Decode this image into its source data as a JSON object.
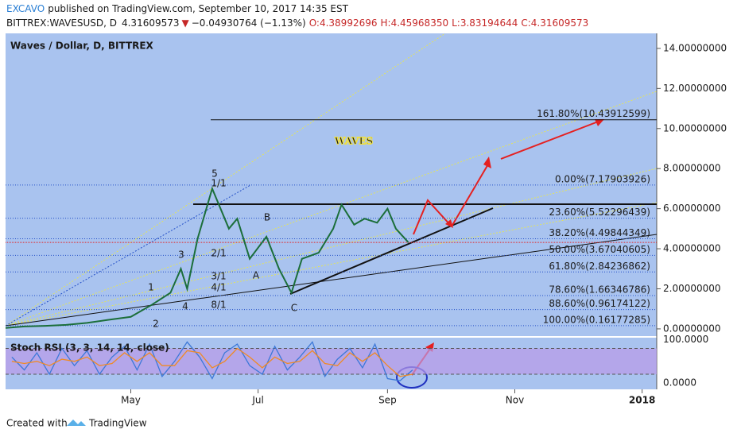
{
  "header": {
    "author": "EXCAVO",
    "published": "published on TradingView.com, September 10, 2017 14:35 EST",
    "symbol": "BITTREX:WAVESUSD, D",
    "price": "4.31609573",
    "arrow": "▼",
    "change": "−0.04930764 (−1.13%)",
    "open": "O:4.38992696",
    "high": "H:4.45968350",
    "low": "L:3.83194644",
    "close": "C:4.31609573"
  },
  "chart_data": [
    {
      "type": "line",
      "title": "Waves / Dollar, D, BITTREX",
      "color": "#1b6e3a",
      "x": [
        1,
        10,
        20,
        30,
        40,
        50,
        61,
        71,
        80,
        85,
        88,
        93,
        100,
        108,
        112,
        118,
        126,
        132,
        138,
        143,
        151,
        158,
        162,
        168,
        173,
        179,
        184,
        188,
        194
      ],
      "values": [
        0.05,
        0.12,
        0.15,
        0.2,
        0.3,
        0.45,
        0.6,
        1.2,
        1.8,
        3.0,
        2.0,
        4.5,
        7.0,
        5.0,
        5.5,
        3.5,
        4.6,
        3.0,
        1.8,
        3.5,
        3.8,
        5.0,
        6.2,
        5.2,
        5.5,
        5.3,
        6.0,
        5.0,
        4.32
      ],
      "xlim": [
        1,
        313
      ],
      "xticks": [
        {
          "value": 61,
          "label": "May"
        },
        {
          "value": 122,
          "label": "Jul"
        },
        {
          "value": 184,
          "label": "Sep"
        },
        {
          "value": 245,
          "label": "Nov"
        },
        {
          "value": 306,
          "label": "2018"
        }
      ],
      "ylim": [
        -0.36,
        14.75
      ],
      "yticks": [
        {
          "value": 0,
          "label": "0.00000000"
        },
        {
          "value": 2,
          "label": "2.00000000"
        },
        {
          "value": 4,
          "label": "4.00000000"
        },
        {
          "value": 6,
          "label": "6.00000000"
        },
        {
          "value": 8,
          "label": "8.00000000"
        },
        {
          "value": 10,
          "label": "10.00000000"
        },
        {
          "value": 12,
          "label": "12.00000000"
        },
        {
          "value": 14,
          "label": "14.00000000"
        }
      ],
      "last": 4.31609573,
      "fib_levels": [
        {
          "value": 10.43912599,
          "label": "161.80%(10.43912599)"
        },
        {
          "value": 7.17903926,
          "label": "0.00%(7.17903926)"
        },
        {
          "value": 5.52296439,
          "label": "23.60%(5.52296439)"
        },
        {
          "value": 4.49844349,
          "label": "38.20%(4.49844349)"
        },
        {
          "value": 3.67040605,
          "label": "50.00%(3.67040605)"
        },
        {
          "value": 2.84236862,
          "label": "61.80%(2.84236862)"
        },
        {
          "value": 1.66346786,
          "label": "78.60%(1.66346786)"
        },
        {
          "value": 0.96174122,
          "label": "88.60%(0.96174122)"
        },
        {
          "value": 0.16177285,
          "label": "100.00%(0.16177285)"
        }
      ],
      "annotations": [
        "5",
        "3",
        "1",
        "2",
        "4",
        "A",
        "B",
        "C",
        "WAVES",
        "1/1",
        "2/1",
        "3/1",
        "4/1",
        "8/1"
      ]
    },
    {
      "type": "line",
      "title": "Stoch RSI (3, 3, 14, 14, close)",
      "ylim": [
        -15,
        105
      ],
      "yticks": [
        {
          "value": 0,
          "label": "0.0000"
        },
        {
          "value": 100,
          "label": "100.0000"
        }
      ],
      "band": [
        20,
        80
      ],
      "x": [
        4,
        10,
        16,
        22,
        28,
        34,
        40,
        46,
        52,
        58,
        64,
        70,
        76,
        82,
        88,
        94,
        100,
        106,
        112,
        118,
        124,
        130,
        136,
        142,
        148,
        154,
        160,
        166,
        172,
        178,
        184,
        190,
        196
      ],
      "series": [
        {
          "color": "#3c78d8",
          "values": [
            60,
            30,
            70,
            20,
            80,
            40,
            75,
            20,
            60,
            85,
            30,
            90,
            15,
            50,
            95,
            60,
            10,
            70,
            90,
            40,
            20,
            85,
            30,
            60,
            95,
            15,
            55,
            80,
            35,
            90,
            10,
            5,
            30
          ]
        },
        {
          "color": "#f08a24",
          "values": [
            50,
            45,
            50,
            40,
            55,
            50,
            60,
            40,
            45,
            70,
            50,
            70,
            40,
            40,
            75,
            70,
            35,
            50,
            80,
            60,
            35,
            60,
            45,
            50,
            75,
            45,
            40,
            70,
            50,
            70,
            40,
            15,
            20
          ]
        }
      ]
    }
  ]
}
